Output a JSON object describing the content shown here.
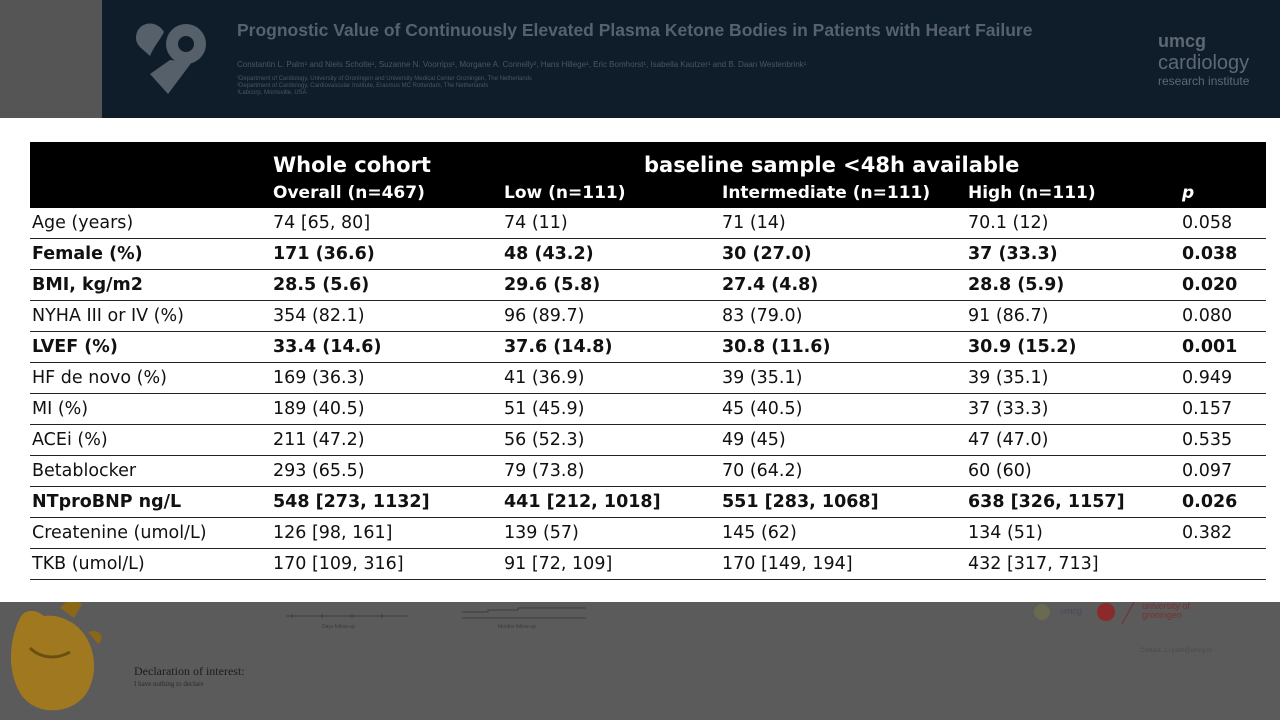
{
  "poster": {
    "title": "Prognostic Value of Continuously Elevated Plasma Ketone Bodies in Patients with Heart Failure",
    "authors": "Constantin L. Palm¹ and Niels Scholte¹, Suzanne N. Voorrips¹, Morgane A. Connelly², Hans Hillege¹, Eric Bomhorst¹, Isabella Kautzer¹ and B. Daan Westenbrink¹",
    "affiliations": [
      "¹Department of Cardiology, University of Groningen and University Medical Center Groningen, The Netherlands",
      "²Department of Cardiology, Cardiovascular Institute, Erasmus MC Rotterdam, The Netherlands",
      "³Labcorp, Morrisville, USA"
    ],
    "brand": {
      "line1": "umcg",
      "line2": "cardiology",
      "line3": "research institute"
    },
    "declaration_title": "Declaration of interest:",
    "declaration_text": "I have nothing to declare",
    "chart_left_label": "Days follow-up",
    "chart_right_label": "Months follow-up",
    "logo_text_umcg": "umcg",
    "logo_text_uni": "university of groningen",
    "footer_caption": "Contact: c.l.palm@umcg.nl"
  },
  "table": {
    "group_headers": {
      "whole_cohort": "Whole cohort",
      "baseline": "baseline sample <48h available"
    },
    "columns": [
      "",
      "Overall (n=467)",
      "Low (n=111)",
      "Intermediate (n=111)",
      "High (n=111)",
      "p"
    ],
    "rows": [
      {
        "label": "Age (years)",
        "overall": "74 [65, 80]",
        "low": "74 (11)",
        "intermediate": "71 (14)",
        "high": "70.1 (12)",
        "p": "0.058",
        "bold": false
      },
      {
        "label": "Female (%)",
        "overall": "171 (36.6)",
        "low": "48 (43.2)",
        "intermediate": "30 (27.0)",
        "high": "37 (33.3)",
        "p": "0.038",
        "bold": true
      },
      {
        "label": "BMI, kg/m2",
        "overall": "28.5 (5.6)",
        "low": "29.6 (5.8)",
        "intermediate": "27.4 (4.8)",
        "high": "28.8 (5.9)",
        "p": "0.020",
        "bold": true
      },
      {
        "label": "NYHA III or IV (%)",
        "overall": "354 (82.1)",
        "low": "96 (89.7)",
        "intermediate": "83 (79.0)",
        "high": "91 (86.7)",
        "p": "0.080",
        "bold": false
      },
      {
        "label": "LVEF (%)",
        "overall": "33.4 (14.6)",
        "low": "37.6 (14.8)",
        "intermediate": "30.8 (11.6)",
        "high": "30.9 (15.2)",
        "p": "0.001",
        "bold": true
      },
      {
        "label": "HF de novo (%)",
        "overall": "169 (36.3)",
        "low": "41 (36.9)",
        "intermediate": "39 (35.1)",
        "high": "39 (35.1)",
        "p": "0.949",
        "bold": false
      },
      {
        "label": "MI (%)",
        "overall": " 189 (40.5)",
        "low": "51 (45.9)",
        "intermediate": "45 (40.5)",
        "high": "37 (33.3)",
        "p": "0.157",
        "bold": false
      },
      {
        "label": "ACEi (%)",
        "overall": " 211 (47.2)",
        "low": "56 (52.3)",
        "intermediate": "49 (45)",
        "high": "47 (47.0)",
        "p": "0.535",
        "bold": false
      },
      {
        "label": "Betablocker",
        "overall": "293 (65.5)",
        "low": "79 (73.8)",
        "intermediate": "70 (64.2)",
        "high": "60 (60)",
        "p": "0.097",
        "bold": false
      },
      {
        "label": "NTproBNP ng/L",
        "overall": "548 [273, 1132]",
        "low": "441 [212, 1018]",
        "intermediate": "551 [283, 1068]",
        "high": "638 [326, 1157]",
        "p": "0.026",
        "bold": true
      },
      {
        "label": "Createnine (umol/L)",
        "overall": "126 [98, 161]",
        "low": "139 (57)",
        "intermediate": "145 (62)",
        "high": "134 (51)",
        "p": "0.382",
        "bold": false
      },
      {
        "label": "TKB (umol/L)",
        "overall": "170 [109, 316]",
        "low": "91 [72, 109]",
        "intermediate": "170 [149, 194]",
        "high": "432 [317, 713]",
        "p": "",
        "bold": false
      }
    ]
  },
  "colors": {
    "header_bg": "#000000",
    "header_text": "#ffffff",
    "poster_dark": "#0f1d2a"
  }
}
